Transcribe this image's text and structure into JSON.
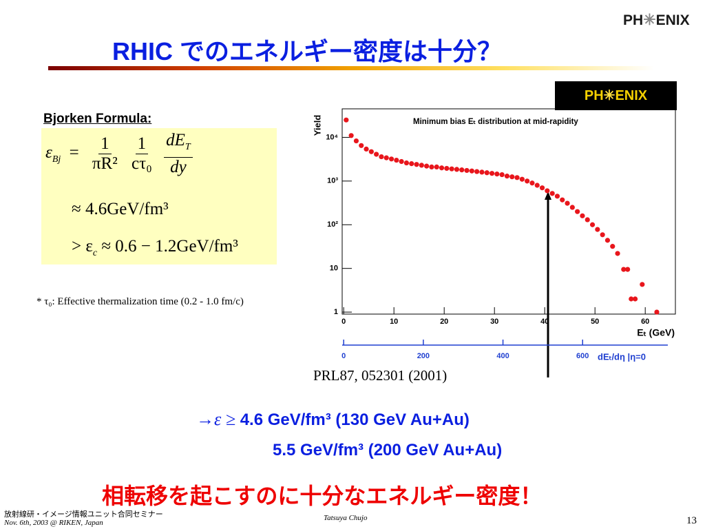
{
  "header": {
    "title": "RHIC でのエネルギー密度は十分？",
    "logo": [
      "PH",
      "ENIX"
    ]
  },
  "formula": {
    "heading": "Bjorken Formula:",
    "lhs": "ε",
    "lhs_sub": "Bj",
    "equals": "=",
    "fractions": [
      {
        "num": "1",
        "den": "πR²"
      },
      {
        "num": "1",
        "den": "cτ₀"
      },
      {
        "num": "dE",
        "num_sub": "T",
        "den": "dy"
      }
    ],
    "line2": "≈ 4.6GeV/fm³",
    "line3_prefix": "> ε",
    "line3_sub": "c",
    "line3": "≈ 0.6 − 1.2GeV/fm³"
  },
  "footnote": "* τ₀: Effective thermalization time (0.2 - 1.0 fm/c)",
  "chart_data": {
    "type": "scatter",
    "title": "Minimum bias Eₜ distribution at mid-rapidity",
    "x_label": "Eₜ (GeV)",
    "y_label": "Yield",
    "x2_label": "dEₜ/dη |η=0",
    "reference": "PRL87, 052301 (2001)",
    "logo": [
      "PH",
      "ENIX"
    ],
    "x": [
      0.5,
      1.5,
      2.5,
      3.5,
      4.5,
      5.5,
      6.5,
      7.5,
      8.5,
      9.5,
      10.5,
      11.5,
      12.5,
      13.5,
      14.5,
      15.5,
      16.5,
      17.5,
      18.5,
      19.5,
      20.5,
      21.5,
      22.5,
      23.5,
      24.5,
      25.5,
      26.5,
      27.5,
      28.5,
      29.5,
      30.5,
      31.5,
      32.5,
      33.5,
      34.5,
      35.5,
      36.5,
      37.5,
      38.5,
      39.5,
      40.5,
      41.5,
      42.5,
      43.5,
      44.5,
      45.5,
      46.5,
      47.5,
      48.5,
      49.5,
      50.5,
      51.5,
      52.5,
      53.5,
      54.5,
      55.7,
      56.5,
      57.2,
      58.0,
      59.4,
      62.3
    ],
    "values": [
      25000,
      11000,
      8300,
      6500,
      5400,
      4700,
      4100,
      3600,
      3400,
      3200,
      3000,
      2800,
      2600,
      2500,
      2400,
      2300,
      2200,
      2100,
      2100,
      2000,
      1950,
      1900,
      1850,
      1800,
      1750,
      1700,
      1650,
      1600,
      1550,
      1500,
      1450,
      1400,
      1300,
      1250,
      1200,
      1100,
      1000,
      900,
      800,
      700,
      600,
      520,
      450,
      370,
      310,
      250,
      200,
      160,
      130,
      100,
      78,
      59,
      44,
      32,
      22,
      9.5,
      9.5,
      2,
      2,
      4.3,
      1
    ],
    "color": "#e8161c",
    "log_y": true,
    "xlim": [
      -0.3,
      66
    ],
    "xticks": [
      0,
      10,
      20,
      30,
      40,
      50,
      60
    ],
    "ylim": [
      0.9,
      45000
    ],
    "yticks": [
      1,
      10,
      {
        "value": 100,
        "label": "10²"
      },
      {
        "value": 1000,
        "label": "10³"
      },
      {
        "value": 10000,
        "label": "10⁴"
      }
    ],
    "x2lim": [
      -3.8,
      833
    ],
    "x2ticks": [
      0,
      200,
      400,
      600
    ],
    "x2_color": "#1f3fd0"
  },
  "conclusion": {
    "arrow": "→ε ≥",
    "lines": [
      "4.6 GeV/fm³ (130 GeV Au+Au)",
      "5.5 GeV/fm³ (200 GeV Au+Au)"
    ],
    "statement": "相転移を起こすのに十分なエネルギー密度！"
  },
  "footer": {
    "event": "放射線研・イメージ情報ユニット合同セミナー",
    "date": "Nov. 6th, 2003 @ RIKEN, Japan",
    "author": "Tatsuya Chujo",
    "page": "13"
  }
}
